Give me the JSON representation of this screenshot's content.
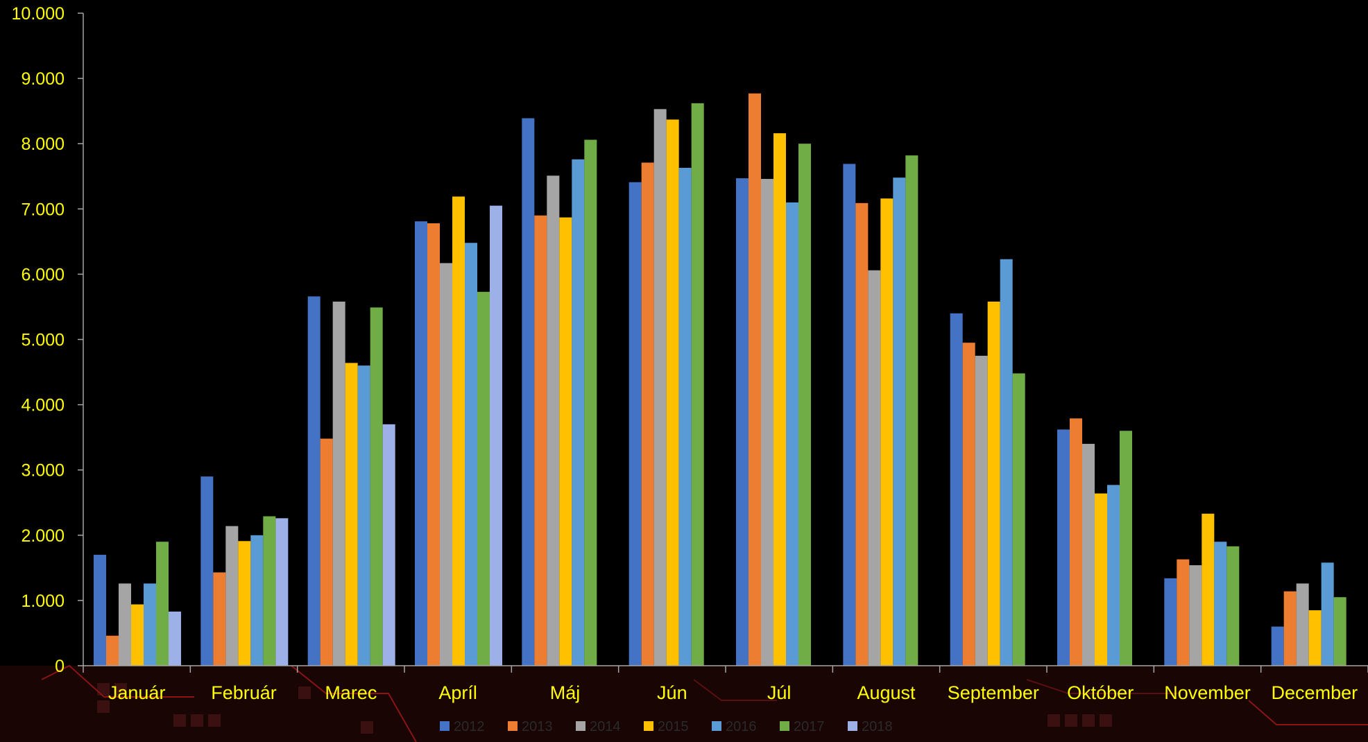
{
  "chart_data": {
    "type": "bar",
    "title": "",
    "xlabel": "",
    "ylabel": "",
    "ylim": [
      0,
      10000
    ],
    "y_ticks": [
      0,
      1000,
      2000,
      3000,
      4000,
      5000,
      6000,
      7000,
      8000,
      9000,
      10000
    ],
    "y_tick_labels": [
      "0",
      "1.000",
      "2.000",
      "3.000",
      "4.000",
      "5.000",
      "6.000",
      "7.000",
      "8.000",
      "9.000",
      "10.000"
    ],
    "categories": [
      "Január",
      "Február",
      "Marec",
      "Apríl",
      "Máj",
      "Jún",
      "Júl",
      "August",
      "September",
      "Október",
      "November",
      "December"
    ],
    "grid": false,
    "legend_position": "bottom",
    "series": [
      {
        "name": "2012",
        "color": "#4472C4",
        "values": [
          1700,
          2900,
          5660,
          6810,
          8390,
          7410,
          7470,
          7690,
          5400,
          3620,
          1340,
          600
        ]
      },
      {
        "name": "2013",
        "color": "#ED7D31",
        "values": [
          460,
          1430,
          3480,
          6780,
          6900,
          7710,
          8770,
          7090,
          4950,
          3790,
          1630,
          1140
        ]
      },
      {
        "name": "2014",
        "color": "#A5A5A5",
        "values": [
          1260,
          2140,
          5580,
          6170,
          7510,
          8530,
          7460,
          6060,
          4750,
          3400,
          1540,
          1260
        ]
      },
      {
        "name": "2015",
        "color": "#FFC000",
        "values": [
          940,
          1910,
          4640,
          7190,
          6870,
          8370,
          8160,
          7160,
          5580,
          2640,
          2330,
          850
        ]
      },
      {
        "name": "2016",
        "color": "#5B9BD5",
        "values": [
          1260,
          2000,
          4600,
          6480,
          7760,
          7630,
          7100,
          7480,
          6230,
          2770,
          1900,
          1580
        ]
      },
      {
        "name": "2017",
        "color": "#70AD47",
        "values": [
          1900,
          2290,
          5490,
          5730,
          8060,
          8620,
          8000,
          7820,
          4480,
          3600,
          1830,
          1050
        ]
      },
      {
        "name": "2018",
        "color": "#9DB0E8",
        "values": [
          830,
          2260,
          3700,
          7050,
          null,
          null,
          null,
          null,
          null,
          null,
          null,
          null
        ]
      }
    ]
  },
  "colors": {
    "background": "#000000",
    "tick_label": "#FFFF00",
    "axis_line": "#A6A6A6",
    "legend_text": "#2A2A2A"
  }
}
